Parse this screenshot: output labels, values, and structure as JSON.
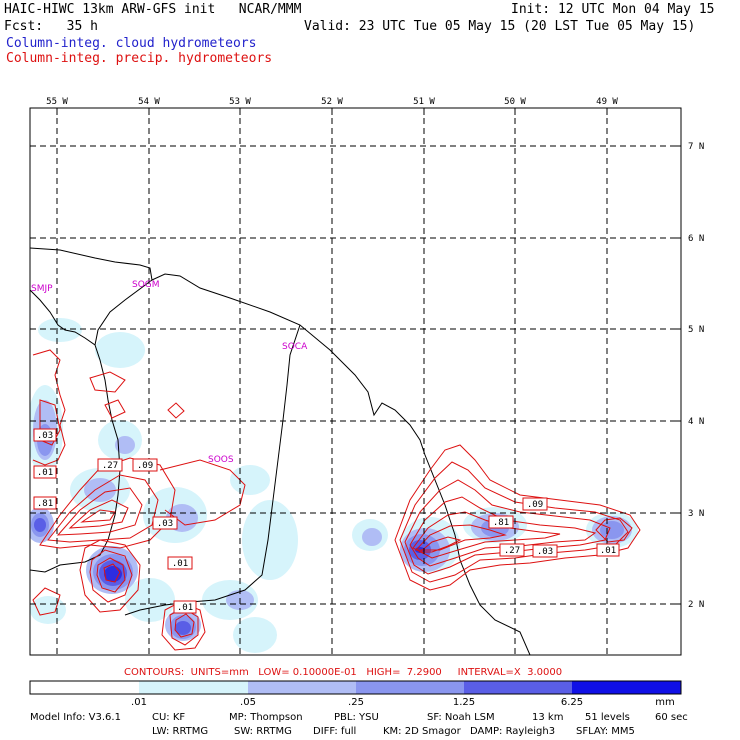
{
  "header": {
    "title_left": "HAIC-HIWC 13km ARW-GFS init   NCAR/MMM",
    "init": "Init: 12 UTC Mon 04 May 15",
    "fcst": "Fcst:   35 h",
    "valid": "Valid: 23 UTC Tue 05 May 15 (20 LST Tue 05 May 15)",
    "field_cloud": "Column-integ. cloud hydrometeors",
    "field_precip": "Column-integ. precip. hydrometeors"
  },
  "colors": {
    "cloud_text": "#2222cc",
    "precip_text": "#dd1111",
    "shade_1": "#d6f4fb",
    "shade_2": "#b0bdf5",
    "shade_3": "#8a96ef",
    "shade_4": "#5a5ee6",
    "shade_5": "#2d2de0",
    "shade_6": "#1010e6",
    "station": "#cc00cc"
  },
  "map": {
    "lon_labels": [
      "55 W",
      "54 W",
      "53 W",
      "52 W",
      "51 W",
      "50 W",
      "49 W"
    ],
    "lat_labels": [
      "7 N",
      "6 N",
      "5 N",
      "4 N",
      "3 N",
      "2 N"
    ],
    "stations": [
      "SMJP",
      "SOGM",
      "SOCA",
      "SOOS"
    ],
    "contour_labels": [
      ".03",
      ".01",
      ".27",
      ".09",
      ".81",
      ".03",
      ".01",
      ".09",
      ".81",
      ".27",
      ".03",
      ".01",
      ".01"
    ]
  },
  "contours_line": "CONTOURS:  UNITS=mm   LOW= 0.10000E-01   HIGH=  7.2900     INTERVAL=X  3.0000",
  "colorbar": {
    "ticks": [
      ".01",
      ".05",
      ".25",
      "1.25",
      "6.25"
    ],
    "unit": "mm"
  },
  "footer": {
    "line1": [
      "Model Info: V3.6.1",
      "CU: KF",
      "MP: Thompson",
      "PBL: YSU",
      "SF: Noah LSM",
      "13 km",
      "51 levels",
      "60 sec"
    ],
    "line2": [
      "LW: RRTMG",
      "SW: RRTMG",
      "DIFF: full",
      "KM: 2D Smagor",
      "DAMP: Rayleigh3",
      "SFLAY: MM5"
    ]
  }
}
